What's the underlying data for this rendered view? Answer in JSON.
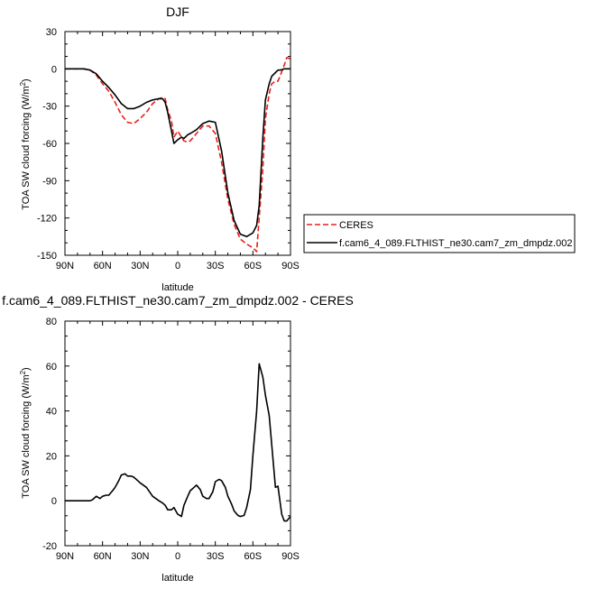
{
  "chart_data": [
    {
      "type": "line",
      "title": "DJF",
      "xlabel": "latitude",
      "ylabel": "TOA SW cloud forcing (W/m",
      "ylabel_sup": "2",
      "ylabel_tail": ")",
      "xlim": [
        90,
        -90
      ],
      "ylim": [
        -150,
        30
      ],
      "xticks": [
        90,
        60,
        30,
        0,
        -30,
        -60,
        -90
      ],
      "xtick_labels": [
        "90N",
        "60N",
        "30N",
        "0",
        "30S",
        "60S",
        "90S"
      ],
      "yticks": [
        30,
        0,
        -30,
        -60,
        -90,
        -120,
        -150
      ],
      "ytick_labels": [
        "30",
        "0",
        "-30",
        "-60",
        "-90",
        "-120",
        "-150"
      ],
      "legend": "outside-right",
      "series": [
        {
          "name": "CERES",
          "color": "#e8201c",
          "dash": true,
          "x": [
            90,
            80,
            75,
            70,
            65,
            60,
            55,
            50,
            45,
            40,
            35,
            30,
            25,
            20,
            15,
            12,
            10,
            8,
            5,
            3,
            0,
            -3,
            -5,
            -8,
            -10,
            -15,
            -20,
            -25,
            -30,
            -35,
            -40,
            -45,
            -50,
            -55,
            -60,
            -63,
            -65,
            -68,
            -70,
            -73,
            -75,
            -78,
            -80,
            -82,
            -85,
            -87,
            -90
          ],
          "values": [
            0,
            0,
            0,
            -1,
            -5,
            -12,
            -18,
            -27,
            -37,
            -43,
            -44,
            -40,
            -35,
            -28,
            -24,
            -23,
            -24,
            -33,
            -42,
            -55,
            -50,
            -55,
            -58,
            -59,
            -58,
            -52,
            -46,
            -46,
            -52,
            -75,
            -105,
            -125,
            -137,
            -141,
            -144,
            -147,
            -120,
            -80,
            -40,
            -20,
            -12,
            -10,
            -10,
            -5,
            3,
            9,
            8
          ]
        },
        {
          "name": "f.cam6_4_089.FLTHIST_ne30.cam7_zm_dmpdz.002",
          "color": "#000000",
          "dash": false,
          "x": [
            90,
            80,
            75,
            70,
            65,
            60,
            55,
            50,
            45,
            40,
            35,
            30,
            25,
            20,
            15,
            12,
            10,
            8,
            5,
            3,
            0,
            -3,
            -5,
            -8,
            -10,
            -15,
            -20,
            -25,
            -30,
            -35,
            -40,
            -45,
            -50,
            -55,
            -60,
            -63,
            -65,
            -68,
            -70,
            -73,
            -75,
            -78,
            -80,
            -82,
            -85,
            -87,
            -90
          ],
          "values": [
            0,
            0,
            0,
            -1,
            -4,
            -10,
            -15,
            -21,
            -28,
            -32,
            -32,
            -30,
            -27,
            -25,
            -24,
            -24,
            -27,
            -35,
            -50,
            -60,
            -57,
            -55,
            -56,
            -53,
            -52,
            -49,
            -44,
            -42,
            -43,
            -66,
            -100,
            -122,
            -133,
            -135,
            -132,
            -126,
            -110,
            -55,
            -25,
            -12,
            -6,
            -3,
            -1,
            -1,
            0,
            0,
            0
          ]
        }
      ]
    },
    {
      "type": "line",
      "title": "f.cam6_4_089.FLTHIST_ne30.cam7_zm_dmpdz.002 - CERES",
      "xlabel": "latitude",
      "ylabel": "TOA SW cloud forcing (W/m",
      "ylabel_sup": "2",
      "ylabel_tail": ")",
      "xlim": [
        90,
        -90
      ],
      "ylim": [
        -20,
        80
      ],
      "xticks": [
        90,
        60,
        30,
        0,
        -30,
        -60,
        -90
      ],
      "xtick_labels": [
        "90N",
        "60N",
        "30N",
        "0",
        "30S",
        "60S",
        "90S"
      ],
      "yticks": [
        80,
        60,
        40,
        20,
        0,
        -20
      ],
      "ytick_labels": [
        "80",
        "60",
        "40",
        "20",
        "0",
        "-20"
      ],
      "legend": "none",
      "series": [
        {
          "color": "#000000",
          "dash": false,
          "x": [
            90,
            80,
            75,
            70,
            68,
            65,
            62,
            60,
            57,
            55,
            52,
            50,
            47,
            45,
            42,
            40,
            37,
            35,
            32,
            30,
            25,
            20,
            15,
            12,
            10,
            8,
            5,
            3,
            0,
            -3,
            -5,
            -8,
            -10,
            -13,
            -15,
            -18,
            -20,
            -23,
            -25,
            -28,
            -30,
            -33,
            -35,
            -38,
            -40,
            -43,
            -45,
            -48,
            -50,
            -53,
            -55,
            -58,
            -60,
            -63,
            -65,
            -68,
            -70,
            -73,
            -75,
            -78,
            -80,
            -83,
            -85,
            -87,
            -90
          ],
          "values": [
            0,
            0,
            0,
            0,
            0.5,
            2,
            1,
            2,
            2.5,
            2.5,
            4.5,
            6,
            9,
            11.5,
            12,
            11,
            11,
            10.5,
            9,
            8,
            6,
            2,
            0,
            -1,
            -2,
            -4,
            -4,
            -3,
            -6,
            -7,
            -2,
            2,
            4.5,
            6,
            7,
            5,
            2,
            1,
            1,
            4,
            8.5,
            9.5,
            9,
            6,
            2,
            -1.5,
            -4.5,
            -6.5,
            -7,
            -6.5,
            -3,
            5,
            20,
            40,
            61,
            55,
            47,
            38,
            25,
            6,
            6.5,
            -6,
            -9,
            -9,
            -7
          ]
        }
      ]
    }
  ]
}
